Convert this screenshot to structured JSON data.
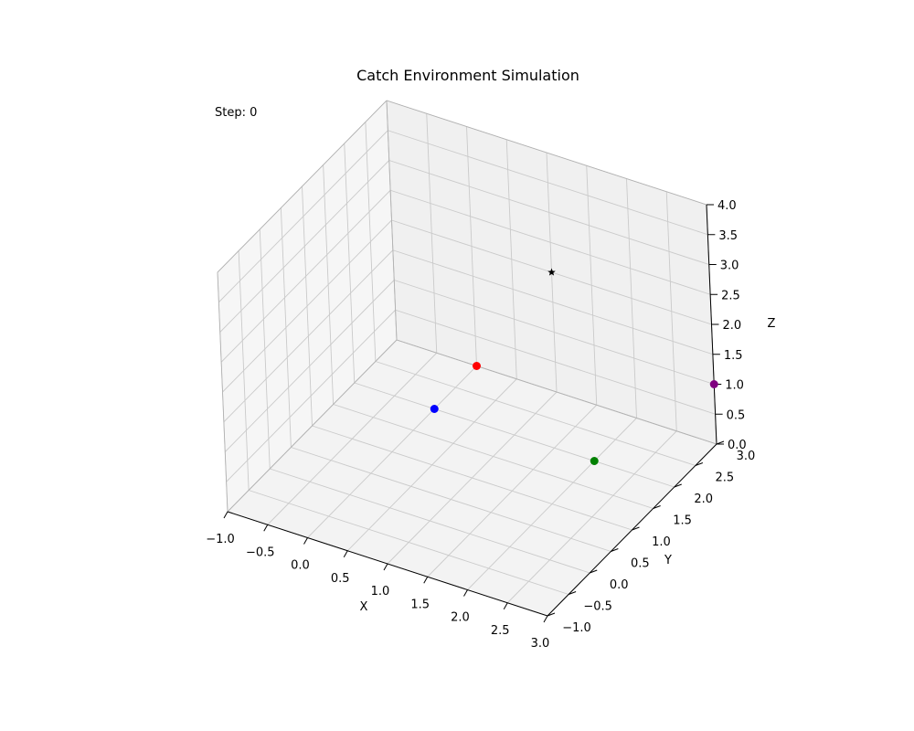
{
  "chart_data": {
    "type": "scatter",
    "projection": "3d",
    "title": "Catch Environment Simulation",
    "annotation": "Step: 0",
    "xlabel": "X",
    "ylabel": "Y",
    "zlabel": "Z",
    "xlim": [
      -1.0,
      3.0
    ],
    "ylim": [
      -1.0,
      3.0
    ],
    "zlim": [
      0.0,
      4.0
    ],
    "xticks": [
      "−1.0",
      "−0.5",
      "0.0",
      "0.5",
      "1.0",
      "1.5",
      "2.0",
      "2.5",
      "3.0"
    ],
    "yticks": [
      "−1.0",
      "−0.5",
      "0.0",
      "0.5",
      "1.0",
      "1.5",
      "2.0",
      "2.5",
      "3.0"
    ],
    "zticks": [
      "0.0",
      "0.5",
      "1.0",
      "1.5",
      "2.0",
      "2.5",
      "3.0",
      "3.5",
      "4.0"
    ],
    "grid": true,
    "points": [
      {
        "x": 0.0,
        "y": 2.0,
        "z": 0.0,
        "color": "#0000ff",
        "marker": "circle"
      },
      {
        "x": 0.0,
        "y": 3.0,
        "z": 0.0,
        "color": "#ff0000",
        "marker": "circle"
      },
      {
        "x": 2.0,
        "y": 2.0,
        "z": 0.0,
        "color": "#008000",
        "marker": "circle"
      },
      {
        "x": 3.0,
        "y": 3.0,
        "z": 1.0,
        "color": "#800080",
        "marker": "circle"
      },
      {
        "x": 1.0,
        "y": 3.0,
        "z": 2.0,
        "color": "#000000",
        "marker": "star"
      }
    ]
  }
}
